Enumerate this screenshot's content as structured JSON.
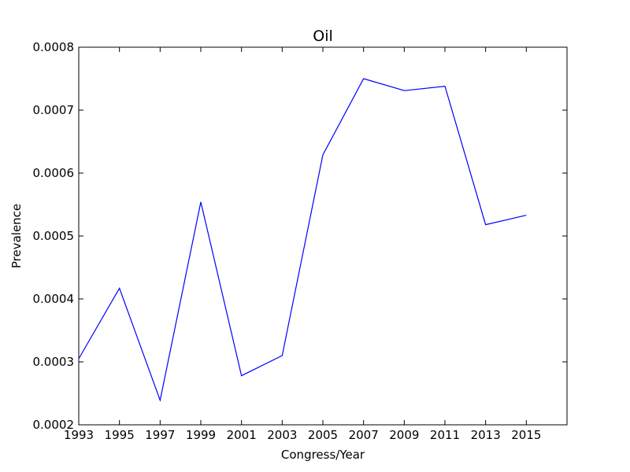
{
  "chart_data": {
    "type": "line",
    "title": "Oil",
    "xlabel": "Congress/Year",
    "ylabel": "Prevalence",
    "xlim": [
      1993,
      2017
    ],
    "ylim": [
      0.0002,
      0.0008
    ],
    "x_ticks": [
      "1993",
      "1995",
      "1997",
      "1999",
      "2001",
      "2003",
      "2005",
      "2007",
      "2009",
      "2011",
      "2013",
      "2015"
    ],
    "y_ticks": [
      "0.0002",
      "0.0003",
      "0.0004",
      "0.0005",
      "0.0006",
      "0.0007",
      "0.0008"
    ],
    "grid": false,
    "colors": {
      "line": "#0000ff",
      "axis": "#000000"
    },
    "series": [
      {
        "x": [
          1993,
          1995,
          1997,
          1999,
          2001,
          2003,
          2005,
          2007,
          2009,
          2011,
          2013,
          2015
        ],
        "values": [
          0.000305,
          0.000417,
          0.000239,
          0.000554,
          0.000278,
          0.00031,
          0.000629,
          0.00075,
          0.000731,
          0.000738,
          0.000518,
          0.000533
        ]
      }
    ]
  }
}
